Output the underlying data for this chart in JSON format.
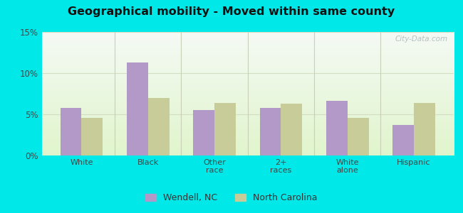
{
  "title": "Geographical mobility - Moved within same county",
  "categories": [
    "White",
    "Black",
    "Other\nrace",
    "2+\nraces",
    "White\nalone",
    "Hispanic"
  ],
  "wendell_values": [
    5.8,
    11.3,
    5.5,
    5.8,
    6.6,
    3.7
  ],
  "nc_values": [
    4.6,
    7.0,
    6.4,
    6.3,
    4.6,
    6.4
  ],
  "wendell_color": "#b399c8",
  "nc_color": "#c8cc99",
  "ylim": [
    0,
    15
  ],
  "yticks": [
    0,
    5,
    10,
    15
  ],
  "ytick_labels": [
    "0%",
    "5%",
    "10%",
    "15%"
  ],
  "legend_wendell": "Wendell, NC",
  "legend_nc": "North Carolina",
  "outer_bg": "#00e8e8",
  "bar_width": 0.32,
  "watermark": "City-Data.com",
  "grid_color": "#d0d8c0",
  "separator_color": "#c8d0b8"
}
